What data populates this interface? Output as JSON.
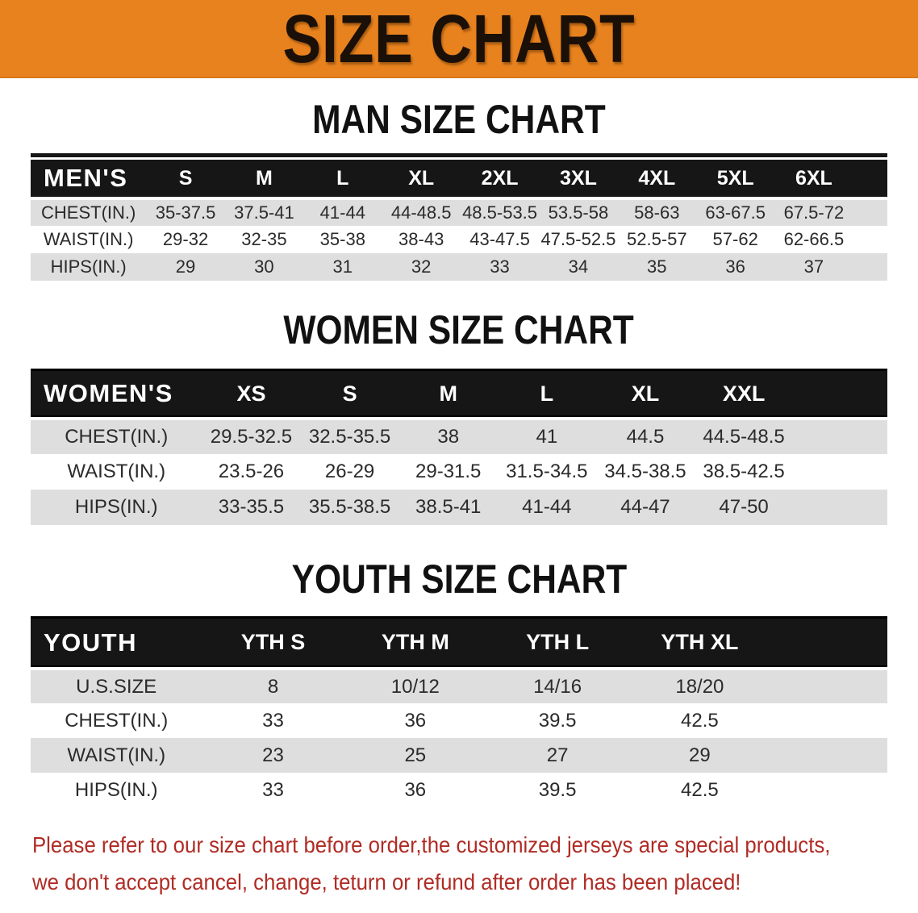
{
  "banner": {
    "title": "SIZE CHART",
    "bg_color": "#E8821E",
    "text_color": "#1A1008"
  },
  "sections": [
    {
      "id": "men",
      "heading": "MAN SIZE CHART",
      "table": {
        "header_label": "MEN'S",
        "columns": [
          "S",
          "M",
          "L",
          "XL",
          "2XL",
          "3XL",
          "4XL",
          "5XL",
          "6XL"
        ],
        "rows": [
          {
            "label": "CHEST(IN.)",
            "values": [
              "35-37.5",
              "37.5-41",
              "41-44",
              "44-48.5",
              "48.5-53.5",
              "53.5-58",
              "58-63",
              "63-67.5",
              "67.5-72"
            ]
          },
          {
            "label": "WAIST(IN.)",
            "values": [
              "29-32",
              "32-35",
              "35-38",
              "38-43",
              "43-47.5",
              "47.5-52.5",
              "52.5-57",
              "57-62",
              "62-66.5"
            ]
          },
          {
            "label": "HIPS(IN.)",
            "values": [
              "29",
              "30",
              "31",
              "32",
              "33",
              "34",
              "35",
              "36",
              "37"
            ]
          }
        ]
      }
    },
    {
      "id": "women",
      "heading": "WOMEN SIZE CHART",
      "table": {
        "header_label": "WOMEN'S",
        "columns": [
          "XS",
          "S",
          "M",
          "L",
          "XL",
          "XXL"
        ],
        "rows": [
          {
            "label": "CHEST(IN.)",
            "values": [
              "29.5-32.5",
              "32.5-35.5",
              "38",
              "41",
              "44.5",
              "44.5-48.5"
            ]
          },
          {
            "label": "WAIST(IN.)",
            "values": [
              "23.5-26",
              "26-29",
              "29-31.5",
              "31.5-34.5",
              "34.5-38.5",
              "38.5-42.5"
            ]
          },
          {
            "label": "HIPS(IN.)",
            "values": [
              "33-35.5",
              "35.5-38.5",
              "38.5-41",
              "41-44",
              "44-47",
              "47-50"
            ]
          }
        ]
      }
    },
    {
      "id": "youth",
      "heading": "YOUTH SIZE CHART",
      "table": {
        "header_label": "YOUTH",
        "columns": [
          "YTH S",
          "YTH M",
          "YTH L",
          "YTH XL"
        ],
        "rows": [
          {
            "label": "U.S.SIZE",
            "values": [
              "8",
              "10/12",
              "14/16",
              "18/20"
            ]
          },
          {
            "label": "CHEST(IN.)",
            "values": [
              "33",
              "36",
              "39.5",
              "42.5"
            ]
          },
          {
            "label": "WAIST(IN.)",
            "values": [
              "23",
              "25",
              "27",
              "29"
            ]
          },
          {
            "label": "HIPS(IN.)",
            "values": [
              "33",
              "36",
              "39.5",
              "42.5"
            ]
          }
        ]
      }
    }
  ],
  "footer": {
    "text_color": "#B02B24",
    "lines": [
      "Please refer to our size chart before order,the customized jerseys are special products,",
      "we don't accept cancel, change, teturn or refund after order has been placed!"
    ]
  }
}
